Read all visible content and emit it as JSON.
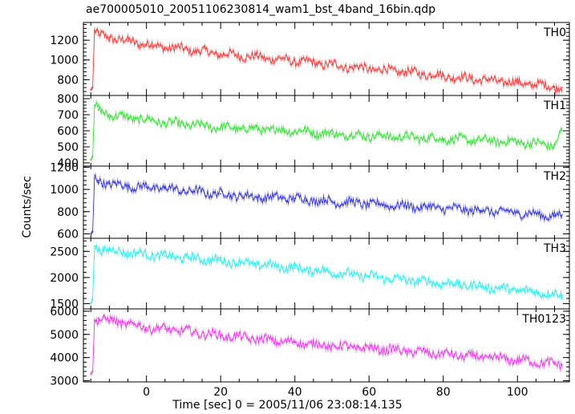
{
  "chart_data": {
    "type": "line",
    "title": "ae700005010_20051106230814_wam1_bst_4band_16bin.qdp",
    "xlabel": "Time [sec] 0 = 2005/11/06 23:08:14.135",
    "ylabel": "Counts/sec",
    "xlim": [
      -17,
      114
    ],
    "x_ticks": [
      0,
      20,
      40,
      60,
      80,
      100
    ],
    "x_tick_labels": [
      "0",
      "20",
      "40",
      "60",
      "80",
      "100"
    ],
    "grid": false,
    "panels": [
      {
        "name": "TH0",
        "color": "#ff3030",
        "ylim": [
          640,
          1380
        ],
        "y_ticks": [
          800,
          1000,
          1200
        ],
        "y_tick_labels": [
          "800",
          "1000",
          "1200"
        ],
        "x": [
          -15,
          -14.5,
          -14,
          -13,
          -10,
          -5,
          0,
          5,
          10,
          20,
          30,
          40,
          50,
          60,
          70,
          80,
          90,
          100,
          110,
          112
        ],
        "y": [
          700,
          720,
          1300,
          1250,
          1230,
          1190,
          1160,
          1130,
          1110,
          1060,
          1030,
          990,
          950,
          910,
          880,
          840,
          800,
          770,
          730,
          720
        ]
      },
      {
        "name": "TH1",
        "color": "#30e030",
        "ylim": [
          380,
          820
        ],
        "y_ticks": [
          400,
          500,
          600,
          700,
          800
        ],
        "y_tick_labels": [
          "400",
          "500",
          "600",
          "700",
          "800"
        ],
        "x": [
          -15,
          -14.5,
          -14,
          -13,
          -10,
          -5,
          0,
          5,
          10,
          20,
          30,
          40,
          50,
          60,
          70,
          80,
          90,
          100,
          110,
          112
        ],
        "y": [
          420,
          440,
          760,
          730,
          700,
          680,
          670,
          650,
          640,
          620,
          610,
          600,
          580,
          570,
          560,
          550,
          540,
          530,
          510,
          600
        ]
      },
      {
        "name": "TH2",
        "color": "#3030e0",
        "ylim": [
          560,
          1210
        ],
        "y_ticks": [
          600,
          800,
          1000,
          1200
        ],
        "y_tick_labels": [
          "600",
          "800",
          "1000",
          "1200"
        ],
        "x": [
          -15,
          -14.5,
          -14,
          -13,
          -10,
          -5,
          0,
          5,
          10,
          20,
          30,
          40,
          50,
          60,
          70,
          80,
          90,
          100,
          110,
          112
        ],
        "y": [
          600,
          620,
          1100,
          1080,
          1050,
          1030,
          1020,
          1010,
          990,
          960,
          930,
          920,
          890,
          870,
          850,
          830,
          810,
          790,
          760,
          770
        ]
      },
      {
        "name": "TH3",
        "color": "#20f0f0",
        "ylim": [
          1400,
          2750
        ],
        "y_ticks": [
          1500,
          2000,
          2500
        ],
        "y_tick_labels": [
          "1500",
          "2000",
          "2500"
        ],
        "x": [
          -15,
          -14.5,
          -14,
          -13,
          -10,
          -5,
          0,
          5,
          10,
          20,
          30,
          40,
          50,
          60,
          70,
          80,
          90,
          100,
          110,
          112
        ],
        "y": [
          1500,
          1600,
          2600,
          2550,
          2520,
          2480,
          2440,
          2410,
          2380,
          2320,
          2250,
          2180,
          2100,
          2020,
          1950,
          1890,
          1830,
          1760,
          1680,
          1660
        ]
      },
      {
        "name": "TH0123",
        "color": "#f030f0",
        "ylim": [
          2950,
          6100
        ],
        "y_ticks": [
          3000,
          4000,
          5000,
          6000
        ],
        "y_tick_labels": [
          "3000",
          "4000",
          "5000",
          "6000"
        ],
        "x": [
          -15,
          -14.5,
          -14,
          -13,
          -10,
          -5,
          0,
          5,
          10,
          20,
          30,
          40,
          50,
          60,
          70,
          80,
          90,
          100,
          110,
          112
        ],
        "y": [
          3300,
          3400,
          5600,
          5700,
          5600,
          5450,
          5300,
          5230,
          5150,
          4950,
          4800,
          4650,
          4500,
          4400,
          4280,
          4150,
          4020,
          3900,
          3720,
          3700
        ]
      }
    ]
  }
}
